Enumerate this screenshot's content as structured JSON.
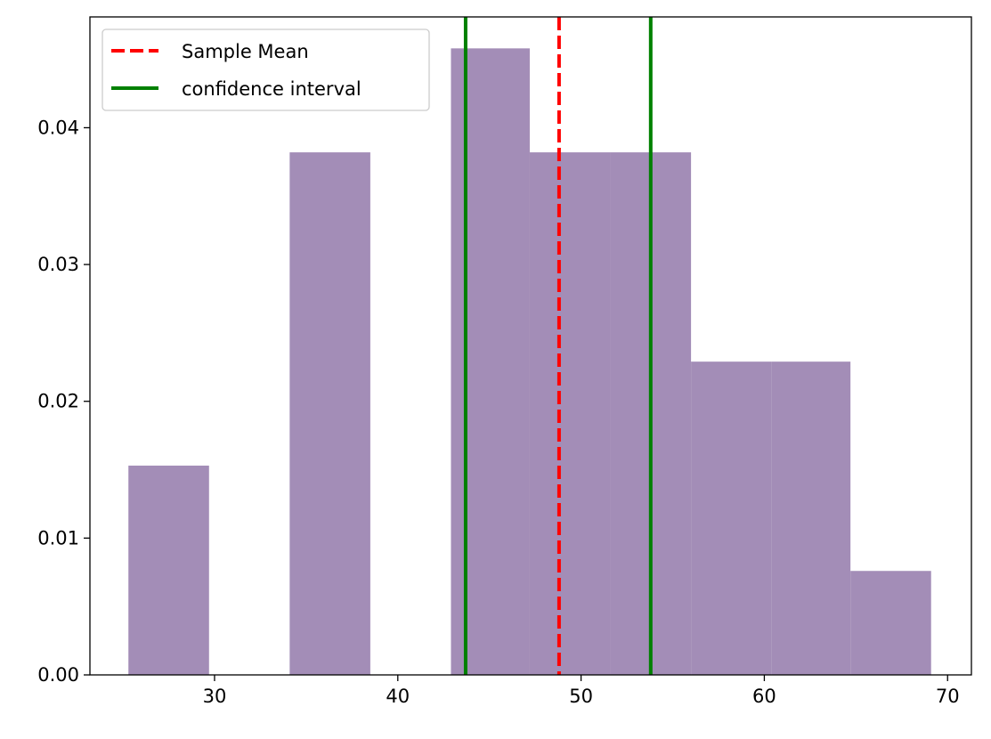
{
  "chart_data": {
    "type": "bar",
    "title": "",
    "xlabel": "",
    "ylabel": "",
    "xlim": [
      23.2,
      71.3
    ],
    "ylim": [
      0,
      0.0481
    ],
    "xticks": [
      30,
      40,
      50,
      60,
      70
    ],
    "yticks": [
      0.0,
      0.01,
      0.02,
      0.03,
      0.04
    ],
    "xtick_labels": [
      "30",
      "40",
      "50",
      "60",
      "70"
    ],
    "ytick_labels": [
      "0.00",
      "0.01",
      "0.02",
      "0.03",
      "0.04"
    ],
    "grid": false,
    "legend_position": "upper-left",
    "histogram": {
      "bins": [
        {
          "x0": 25.3,
          "x1": 29.7,
          "density": 0.0153
        },
        {
          "x0": 29.7,
          "x1": 34.1,
          "density": 0.0
        },
        {
          "x0": 34.1,
          "x1": 38.5,
          "density": 0.0382
        },
        {
          "x0": 38.5,
          "x1": 42.9,
          "density": 0.0
        },
        {
          "x0": 42.9,
          "x1": 47.2,
          "density": 0.0458
        },
        {
          "x0": 47.2,
          "x1": 51.6,
          "density": 0.0382
        },
        {
          "x0": 51.6,
          "x1": 56.0,
          "density": 0.0382
        },
        {
          "x0": 56.0,
          "x1": 60.4,
          "density": 0.0229
        },
        {
          "x0": 60.4,
          "x1": 64.7,
          "density": 0.0229
        },
        {
          "x0": 64.7,
          "x1": 69.1,
          "density": 0.0076
        }
      ],
      "color": "#a38db7"
    },
    "vlines": [
      {
        "name": "Sample Mean",
        "x": 48.8,
        "color": "#ff0000",
        "style": "dashed"
      },
      {
        "name": "confidence interval",
        "x": 43.7,
        "color": "#008000",
        "style": "solid"
      },
      {
        "name": "confidence interval",
        "x": 53.8,
        "color": "#008000",
        "style": "solid"
      }
    ],
    "legend": [
      {
        "label": "Sample Mean",
        "color": "#ff0000",
        "style": "dashed"
      },
      {
        "label": "confidence interval",
        "color": "#008000",
        "style": "solid"
      }
    ]
  }
}
